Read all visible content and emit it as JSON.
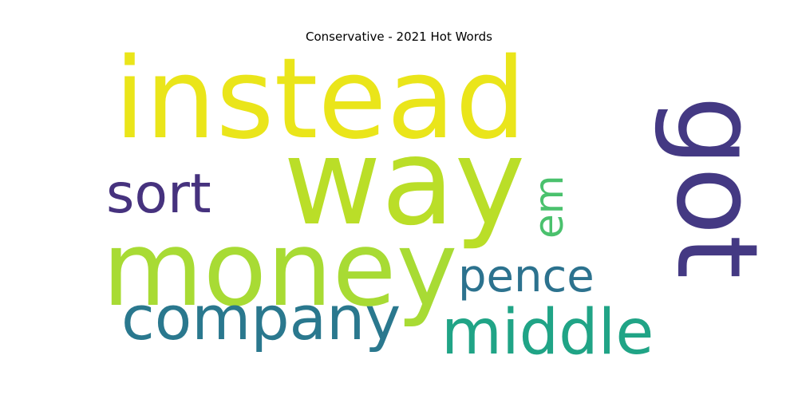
{
  "chart_data": {
    "type": "wordcloud",
    "title": "Conservative - 2021 Hot Words",
    "orientation_note": "",
    "words": [
      {
        "text": "instead",
        "weight": 1.0,
        "color": "#eae51a",
        "orientation": "horizontal"
      },
      {
        "text": "way",
        "weight": 0.98,
        "color": "#bade28",
        "orientation": "horizontal"
      },
      {
        "text": "money",
        "weight": 0.95,
        "color": "#a8db34",
        "orientation": "horizontal"
      },
      {
        "text": "got",
        "weight": 0.78,
        "color": "#443983",
        "orientation": "vertical"
      },
      {
        "text": "company",
        "weight": 0.55,
        "color": "#2a788e",
        "orientation": "horizontal"
      },
      {
        "text": "middle",
        "weight": 0.55,
        "color": "#20a486",
        "orientation": "horizontal"
      },
      {
        "text": "sort",
        "weight": 0.5,
        "color": "#46327e",
        "orientation": "horizontal"
      },
      {
        "text": "pence",
        "weight": 0.45,
        "color": "#2c728e",
        "orientation": "horizontal"
      },
      {
        "text": "em",
        "weight": 0.32,
        "color": "#4ac16d",
        "orientation": "vertical"
      }
    ]
  }
}
